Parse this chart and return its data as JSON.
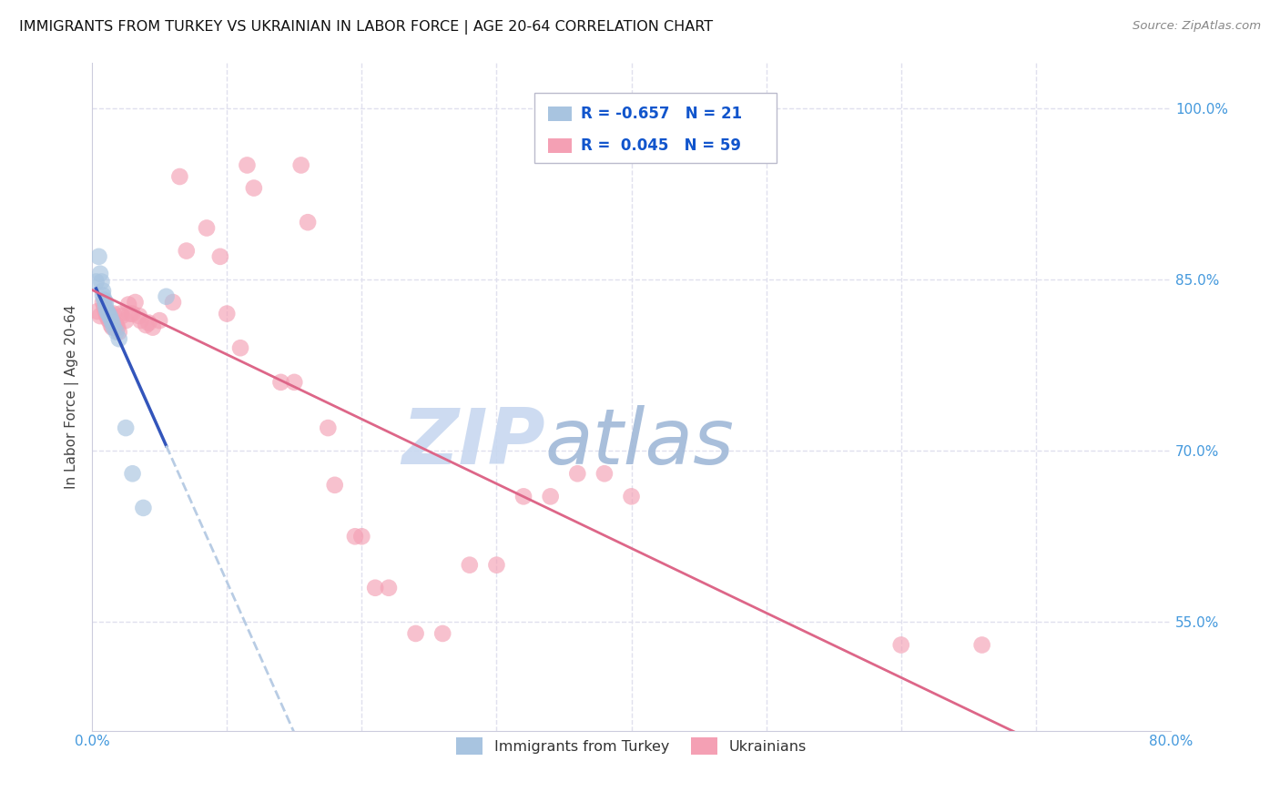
{
  "title": "IMMIGRANTS FROM TURKEY VS UKRAINIAN IN LABOR FORCE | AGE 20-64 CORRELATION CHART",
  "source": "Source: ZipAtlas.com",
  "ylabel": "In Labor Force | Age 20-64",
  "xlim": [
    0.0,
    0.8
  ],
  "ylim": [
    0.455,
    1.04
  ],
  "ytick_positions": [
    0.55,
    0.7,
    0.85,
    1.0
  ],
  "ytick_labels": [
    "55.0%",
    "70.0%",
    "85.0%",
    "100.0%"
  ],
  "xtick_positions": [
    0.0,
    0.1,
    0.2,
    0.3,
    0.4,
    0.5,
    0.6,
    0.7,
    0.8
  ],
  "xtick_labels": [
    "0.0%",
    "",
    "",
    "",
    "",
    "",
    "",
    "",
    "80.0%"
  ],
  "legend_R_turkey": "-0.657",
  "legend_N_turkey": "21",
  "legend_R_ukrainian": "0.045",
  "legend_N_ukrainian": "59",
  "turkey_color": "#a8c4e0",
  "ukrainian_color": "#f4a0b4",
  "turkey_line_color": "#3355bb",
  "ukrainian_line_color": "#dd6688",
  "dashed_line_color": "#b8cce4",
  "grid_color": "#e0e0ee",
  "watermark_zip_color": "#c8d8f0",
  "watermark_atlas_color": "#a0b8d8",
  "turkey_x": [
    0.003,
    0.005,
    0.006,
    0.007,
    0.008,
    0.008,
    0.009,
    0.01,
    0.01,
    0.011,
    0.012,
    0.013,
    0.014,
    0.015,
    0.016,
    0.018,
    0.02,
    0.025,
    0.03,
    0.038,
    0.055
  ],
  "turkey_y": [
    0.848,
    0.87,
    0.855,
    0.848,
    0.84,
    0.836,
    0.832,
    0.83,
    0.826,
    0.822,
    0.82,
    0.818,
    0.815,
    0.812,
    0.808,
    0.804,
    0.798,
    0.72,
    0.68,
    0.65,
    0.835
  ],
  "ukrainian_x": [
    0.004,
    0.006,
    0.008,
    0.009,
    0.01,
    0.011,
    0.012,
    0.013,
    0.013,
    0.014,
    0.015,
    0.016,
    0.017,
    0.018,
    0.019,
    0.02,
    0.021,
    0.022,
    0.025,
    0.027,
    0.028,
    0.03,
    0.032,
    0.035,
    0.036,
    0.04,
    0.042,
    0.045,
    0.05,
    0.06,
    0.065,
    0.07,
    0.085,
    0.095,
    0.1,
    0.11,
    0.115,
    0.12,
    0.14,
    0.15,
    0.155,
    0.16,
    0.175,
    0.18,
    0.195,
    0.2,
    0.21,
    0.22,
    0.24,
    0.26,
    0.28,
    0.3,
    0.32,
    0.34,
    0.36,
    0.38,
    0.4,
    0.6,
    0.66
  ],
  "ukrainian_y": [
    0.822,
    0.818,
    0.83,
    0.826,
    0.822,
    0.818,
    0.815,
    0.82,
    0.814,
    0.81,
    0.808,
    0.82,
    0.812,
    0.81,
    0.808,
    0.804,
    0.82,
    0.818,
    0.814,
    0.828,
    0.82,
    0.82,
    0.83,
    0.818,
    0.814,
    0.81,
    0.812,
    0.808,
    0.814,
    0.83,
    0.94,
    0.875,
    0.895,
    0.87,
    0.82,
    0.79,
    0.95,
    0.93,
    0.76,
    0.76,
    0.95,
    0.9,
    0.72,
    0.67,
    0.625,
    0.625,
    0.58,
    0.58,
    0.54,
    0.54,
    0.6,
    0.6,
    0.66,
    0.66,
    0.68,
    0.68,
    0.66,
    0.53,
    0.53
  ]
}
